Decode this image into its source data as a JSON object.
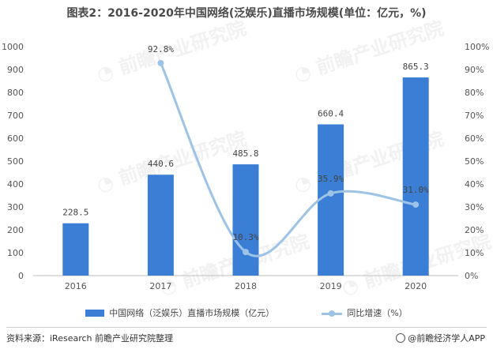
{
  "title": "图表2：2016-2020年中国网络(泛娱乐)直播市场规模(单位：亿元，%)",
  "chart_data": {
    "type": "bar",
    "categories": [
      "2016",
      "2017",
      "2018",
      "2019",
      "2020"
    ],
    "series": [
      {
        "name": "中国网络（泛娱乐）直播市场规模（亿元）",
        "type": "bar",
        "axis": "left",
        "values": [
          228.5,
          440.6,
          485.8,
          660.4,
          865.3
        ],
        "labels": [
          "228.5",
          "440.6",
          "485.8",
          "660.4",
          "865.3"
        ],
        "color": "#3a7fd5"
      },
      {
        "name": "同比增速（%）",
        "type": "line",
        "axis": "right",
        "values": [
          null,
          92.8,
          10.3,
          35.9,
          31.0
        ],
        "labels": [
          "",
          "92.8%",
          "10.3%",
          "35.9%",
          "31.0%"
        ],
        "color": "#9dc3e6"
      }
    ],
    "ylim_left": [
      0,
      1000
    ],
    "yticks_left": [
      "0",
      "100",
      "200",
      "300",
      "400",
      "500",
      "600",
      "700",
      "800",
      "900",
      "1000"
    ],
    "ylim_right": [
      0,
      100
    ],
    "yticks_right": [
      "0%",
      "10%",
      "20%",
      "30%",
      "40%",
      "50%",
      "60%",
      "70%",
      "80%",
      "90%",
      "100%"
    ],
    "grid": false,
    "legend_position": "bottom"
  },
  "legend": {
    "bar_label": "中国网络（泛娱乐）直播市场规模（亿元）",
    "line_label": "同比增速（%）"
  },
  "footer": {
    "source": "资料来源：iResearch 前瞻产业研究院整理",
    "brand": "@前瞻经济学人APP"
  }
}
